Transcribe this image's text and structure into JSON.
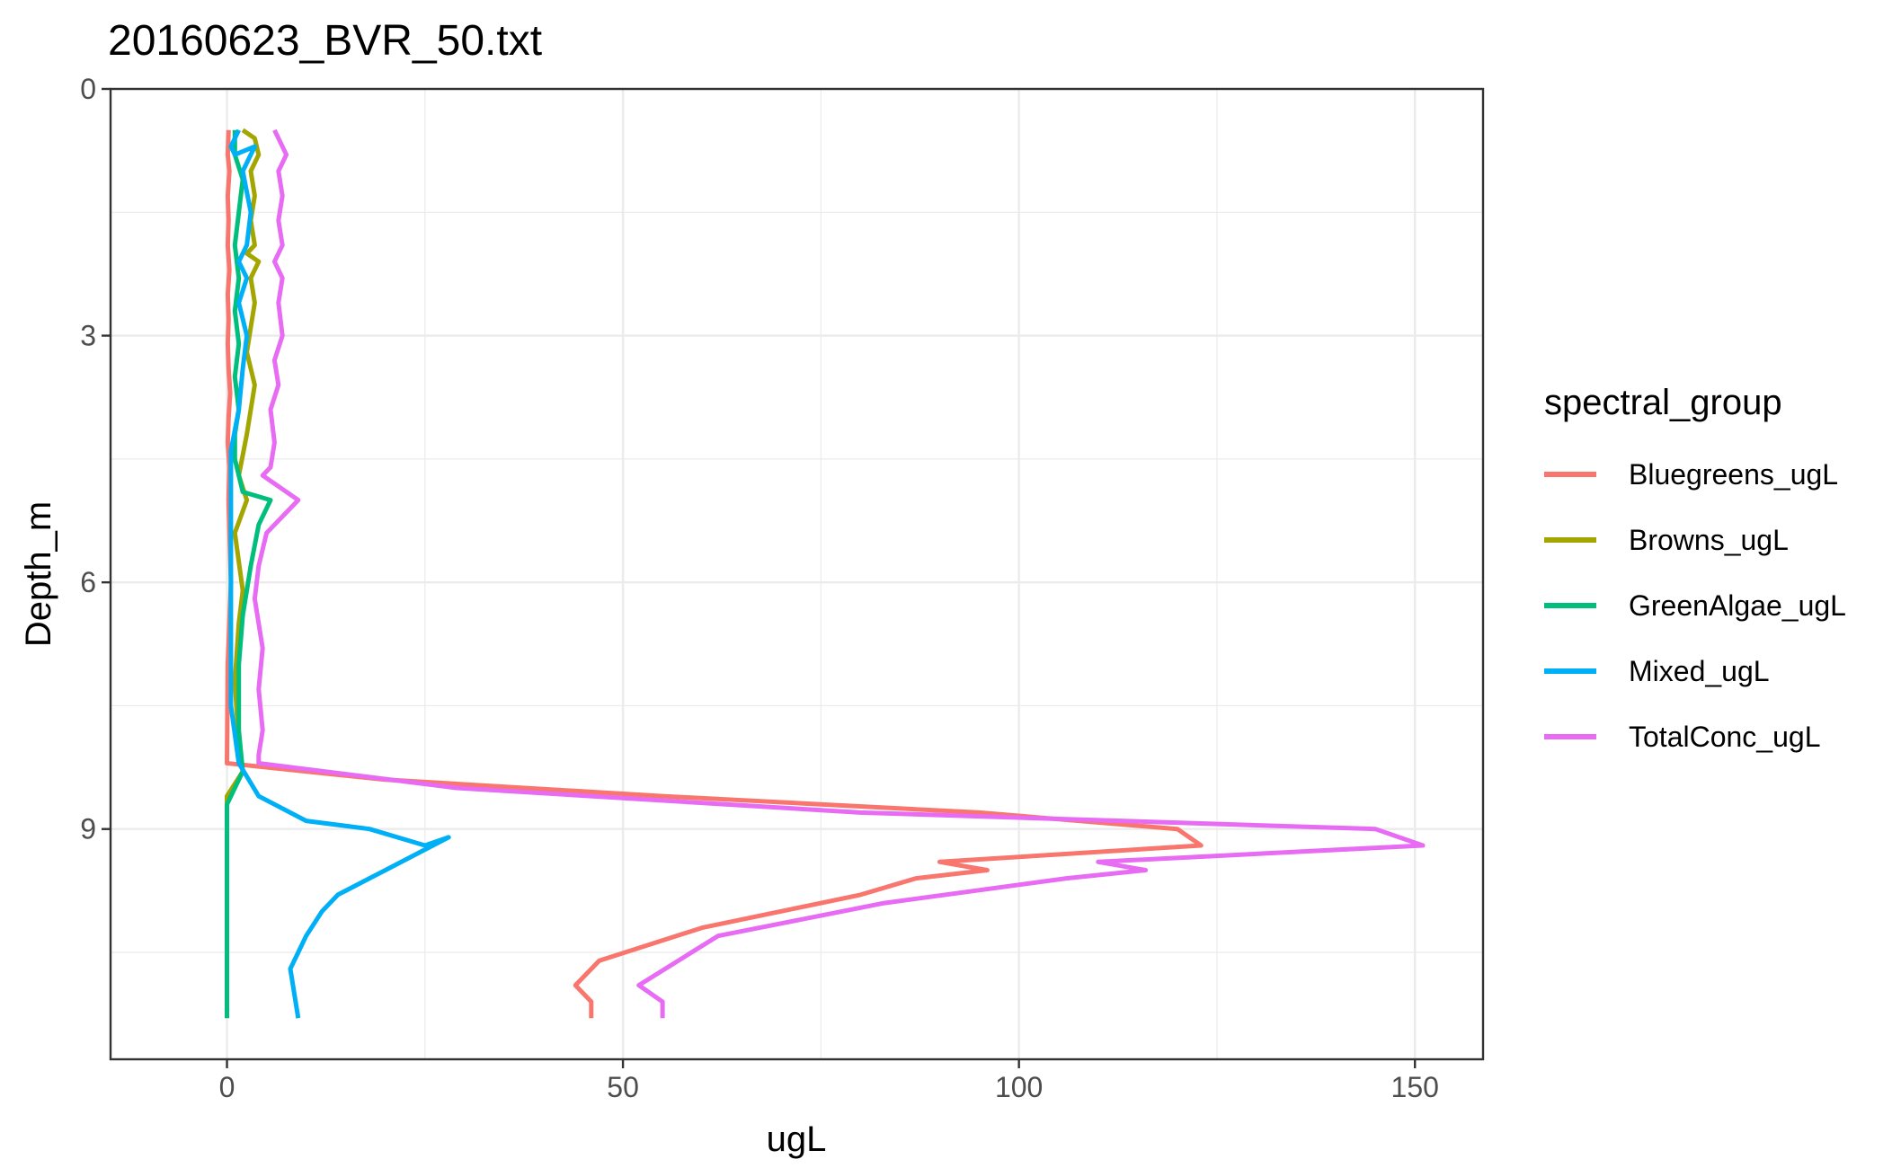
{
  "chart_data": {
    "type": "line",
    "title": "20160623_BVR_50.txt",
    "xlabel": "ugL",
    "ylabel": "Depth_m",
    "xlim": [
      -14.7,
      158.6
    ],
    "ylim": [
      0,
      11.8
    ],
    "y_reversed": true,
    "grid": true,
    "x_ticks": [
      0,
      50,
      100,
      150
    ],
    "y_ticks": [
      0,
      3,
      6,
      9
    ],
    "x_tick_labels": [
      "0",
      "50",
      "100",
      "150"
    ],
    "y_tick_labels": [
      "0",
      "3",
      "6",
      "9"
    ],
    "legend": {
      "title": "spectral_group",
      "placement": "right"
    },
    "series": [
      {
        "name": "Bluegreens_ugL",
        "color": "#F8766D",
        "x": [
          0.2,
          0.1,
          0.3,
          0.1,
          0.2,
          0.1,
          0.3,
          0.1,
          0.2,
          0.1,
          0.2,
          0.4,
          0.2,
          0.1,
          0.3,
          0.2,
          0.5,
          0.1,
          0.0,
          20,
          55,
          95,
          120,
          123,
          90,
          96,
          87,
          80,
          60,
          47,
          44,
          46,
          46
        ],
        "y": [
          0.5,
          0.8,
          1.0,
          1.3,
          1.6,
          1.9,
          2.2,
          2.5,
          2.8,
          3.1,
          3.4,
          3.7,
          4.0,
          4.3,
          4.6,
          5.0,
          6.0,
          7.0,
          8.2,
          8.4,
          8.6,
          8.8,
          9.0,
          9.2,
          9.4,
          9.5,
          9.6,
          9.8,
          10.2,
          10.6,
          10.9,
          11.1,
          11.3
        ]
      },
      {
        "name": "Browns_ugL",
        "color": "#A3A500",
        "x": [
          2.0,
          3.5,
          4.0,
          3.0,
          3.5,
          3.0,
          3.5,
          2.5,
          4.0,
          3.0,
          3.5,
          3.0,
          2.5,
          3.5,
          2.5,
          1.5,
          2.5,
          1.0,
          2.0,
          1.5,
          1.0,
          1.5,
          2.0,
          0.0,
          0.0
        ],
        "y": [
          0.5,
          0.6,
          0.8,
          1.0,
          1.3,
          1.6,
          1.9,
          2.0,
          2.1,
          2.3,
          2.6,
          2.9,
          3.2,
          3.6,
          4.2,
          4.7,
          5.0,
          5.4,
          6.1,
          6.5,
          7.2,
          8.0,
          8.3,
          8.6,
          8.7
        ]
      },
      {
        "name": "GreenAlgae_ugL",
        "color": "#00BF7D",
        "x": [
          1.0,
          1.0,
          2.0,
          1.5,
          1.0,
          1.5,
          1.0,
          1.5,
          1.0,
          1.5,
          1.0,
          1.0,
          1.5,
          2.0,
          5.5,
          4.0,
          3.0,
          2.0,
          1.5,
          1.5,
          2.0,
          0.0,
          0.0,
          0.0
        ],
        "y": [
          0.5,
          0.8,
          1.1,
          1.5,
          1.9,
          2.3,
          2.7,
          3.1,
          3.5,
          3.9,
          4.2,
          4.5,
          4.7,
          4.9,
          5.0,
          5.3,
          5.8,
          6.4,
          7.0,
          7.8,
          8.3,
          8.7,
          9.5,
          11.3
        ]
      },
      {
        "name": "Mixed_ugL",
        "color": "#00B0F6",
        "x": [
          1.5,
          0.5,
          1.0,
          3.5,
          2.0,
          3.0,
          2.5,
          1.5,
          2.5,
          1.5,
          2.5,
          2.0,
          1.5,
          0.5,
          0.5,
          0.5,
          0.5,
          1.5,
          4.0,
          10,
          18,
          25,
          28,
          20,
          18,
          14,
          12,
          10,
          9,
          8,
          8.5,
          9
        ],
        "y": [
          0.5,
          0.7,
          0.8,
          0.7,
          1.0,
          1.5,
          1.9,
          2.1,
          2.3,
          2.6,
          3.0,
          3.4,
          3.9,
          4.4,
          5.4,
          6.8,
          7.5,
          8.2,
          8.6,
          8.9,
          9.0,
          9.2,
          9.1,
          9.5,
          9.6,
          9.8,
          10.0,
          10.3,
          10.5,
          10.7,
          11.0,
          11.3
        ]
      },
      {
        "name": "TotalConc_ugL",
        "color": "#E76BF3",
        "x": [
          6.0,
          7.5,
          6.5,
          7.0,
          6.5,
          7.0,
          6.0,
          7.0,
          6.5,
          7.0,
          6.0,
          6.5,
          5.5,
          6.0,
          5.5,
          4.5,
          9.0,
          5.0,
          4.0,
          3.5,
          4.5,
          4.0,
          4.5,
          4.0,
          4.0,
          29,
          80,
          145,
          151,
          110,
          116,
          106,
          83,
          62,
          52,
          55,
          55
        ],
        "y": [
          0.5,
          0.8,
          1.0,
          1.3,
          1.6,
          1.9,
          2.1,
          2.3,
          2.6,
          3.0,
          3.3,
          3.6,
          3.9,
          4.3,
          4.6,
          4.7,
          5.0,
          5.4,
          5.8,
          6.2,
          6.8,
          7.3,
          7.8,
          8.1,
          8.2,
          8.5,
          8.8,
          9.0,
          9.2,
          9.4,
          9.5,
          9.6,
          9.9,
          10.3,
          10.9,
          11.1,
          11.3
        ]
      }
    ]
  }
}
